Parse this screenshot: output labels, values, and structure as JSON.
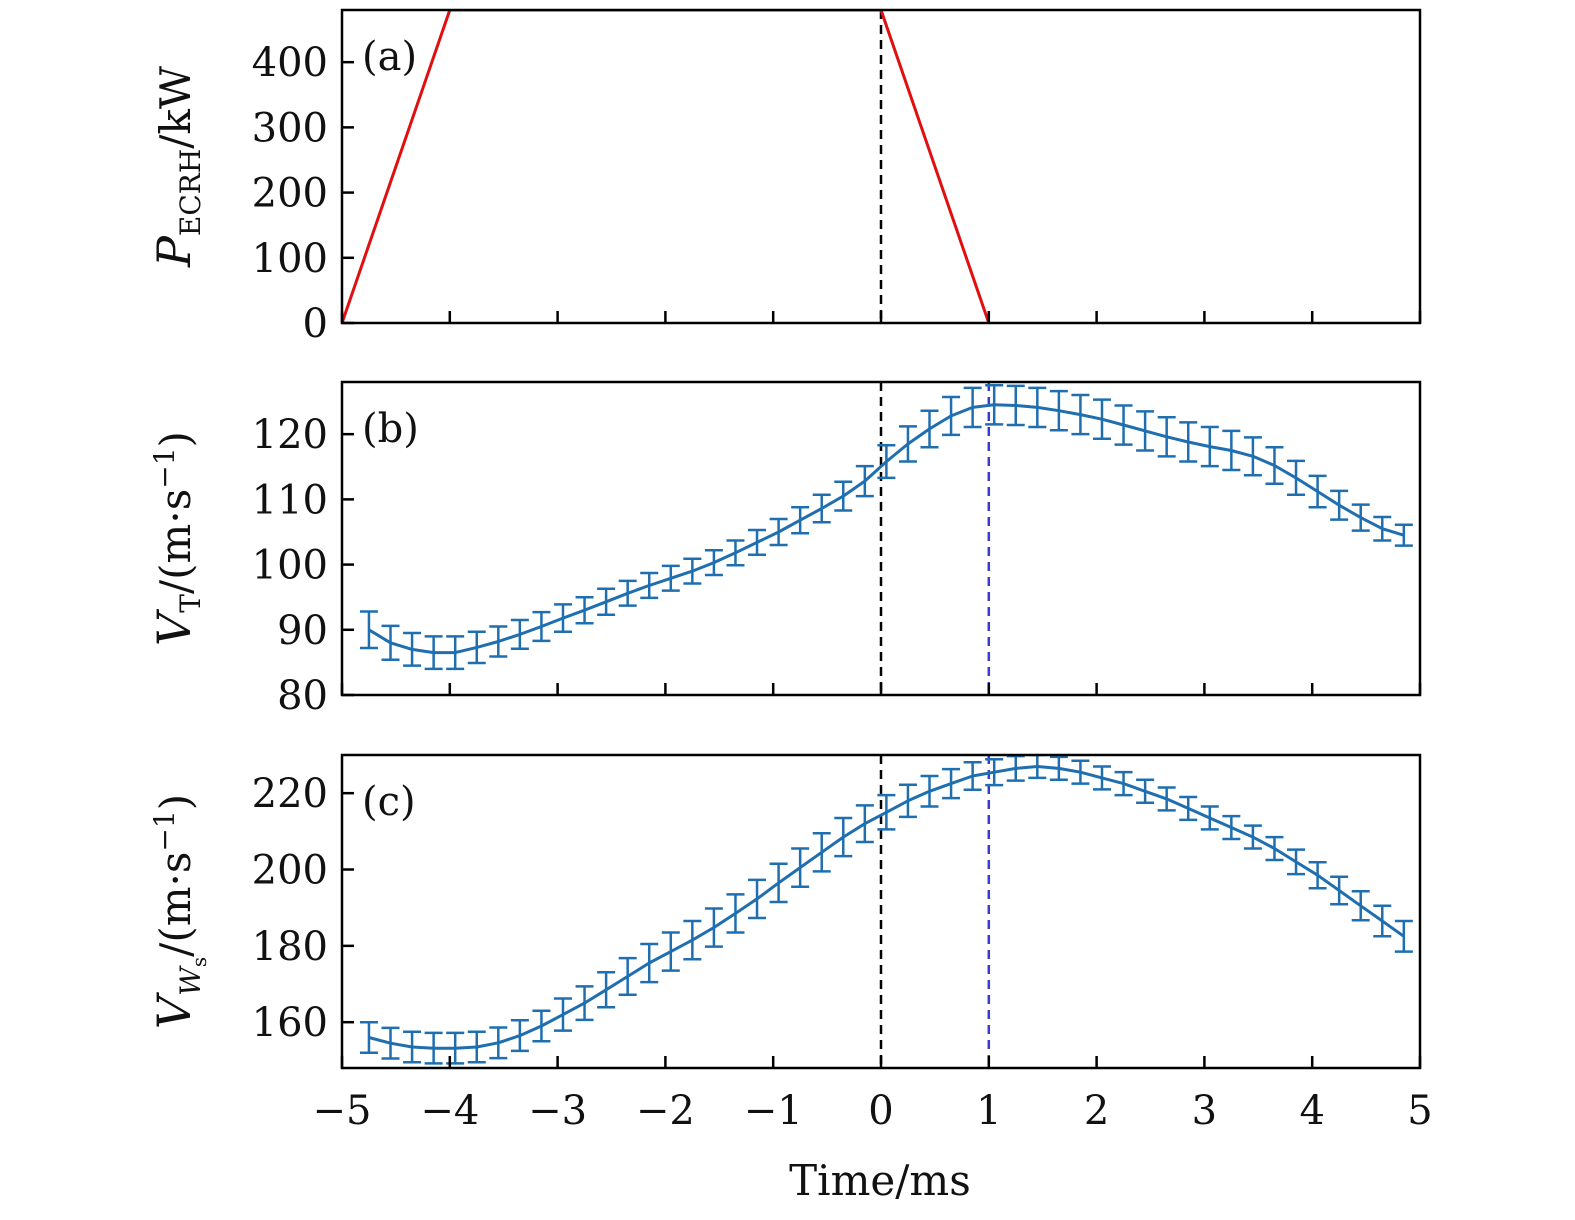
{
  "figure": {
    "xlabel": "Time/ms"
  },
  "chart_data": [
    {
      "type": "line",
      "panel_label": "(a)",
      "ylabel_main": "P",
      "ylabel_sub": "ECRH",
      "ylabel_unit": "/kW",
      "xlim": [
        -5,
        5
      ],
      "ylim": [
        0,
        480
      ],
      "yticks": [
        0,
        100,
        200,
        300,
        400
      ],
      "vlines": [
        {
          "x": 0,
          "color": "#000000"
        }
      ],
      "series": [
        {
          "color": "#e01010",
          "x": [
            -5,
            -4,
            0,
            1
          ],
          "y": [
            0,
            480,
            480,
            0
          ]
        }
      ]
    },
    {
      "type": "line",
      "panel_label": "(b)",
      "ylabel_main": "V",
      "ylabel_sub": "T",
      "ylabel_unit": "/(m·s",
      "ylabel_sup": "−1",
      "ylabel_close": ")",
      "xlim": [
        -5,
        5
      ],
      "ylim": [
        80,
        128
      ],
      "yticks": [
        80,
        90,
        100,
        110,
        120
      ],
      "vlines": [
        {
          "x": 0,
          "color": "#000000"
        },
        {
          "x": 1,
          "color": "#3a3ad0"
        }
      ],
      "series": [
        {
          "color": "#1f6fb0",
          "x": [
            -4.75,
            -4.55,
            -4.35,
            -4.15,
            -3.95,
            -3.75,
            -3.55,
            -3.35,
            -3.15,
            -2.95,
            -2.75,
            -2.55,
            -2.35,
            -2.15,
            -1.95,
            -1.75,
            -1.55,
            -1.35,
            -1.15,
            -0.95,
            -0.75,
            -0.55,
            -0.35,
            -0.15,
            0.05,
            0.25,
            0.45,
            0.65,
            0.85,
            1.05,
            1.25,
            1.45,
            1.65,
            1.85,
            2.05,
            2.25,
            2.45,
            2.65,
            2.85,
            3.05,
            3.25,
            3.45,
            3.65,
            3.85,
            4.05,
            4.25,
            4.45,
            4.65,
            4.85
          ],
          "y": [
            90.0,
            88.0,
            87.0,
            86.5,
            86.5,
            87.3,
            88.2,
            89.3,
            90.5,
            91.8,
            93.0,
            94.3,
            95.6,
            96.8,
            97.9,
            99.0,
            100.3,
            101.8,
            103.4,
            105.0,
            106.8,
            108.6,
            110.5,
            112.8,
            115.8,
            118.5,
            120.8,
            122.8,
            124.1,
            124.5,
            124.4,
            124.1,
            123.6,
            123.0,
            122.3,
            121.4,
            120.5,
            119.6,
            118.8,
            118.1,
            117.5,
            116.6,
            115.2,
            113.3,
            111.2,
            109.1,
            107.2,
            105.5,
            104.5
          ],
          "err": [
            2.8,
            2.6,
            2.5,
            2.5,
            2.5,
            2.4,
            2.3,
            2.2,
            2.2,
            2.1,
            2.0,
            2.0,
            1.9,
            1.9,
            1.9,
            1.9,
            1.9,
            1.9,
            1.9,
            2.0,
            2.0,
            2.1,
            2.2,
            2.3,
            2.5,
            2.7,
            2.8,
            2.9,
            3.0,
            3.0,
            3.0,
            3.0,
            3.0,
            3.0,
            3.0,
            3.0,
            3.0,
            3.0,
            3.0,
            3.0,
            3.0,
            2.9,
            2.8,
            2.6,
            2.4,
            2.2,
            2.0,
            1.8,
            1.6
          ]
        }
      ]
    },
    {
      "type": "line",
      "panel_label": "(c)",
      "ylabel_main": "V",
      "ylabel_sub": "W",
      "ylabel_subsub": "s",
      "ylabel_unit": "/(m·s",
      "ylabel_sup": "−1",
      "ylabel_close": ")",
      "xlim": [
        -5,
        5
      ],
      "ylim": [
        148,
        230
      ],
      "yticks": [
        160,
        180,
        200,
        220
      ],
      "vlines": [
        {
          "x": 0,
          "color": "#000000"
        },
        {
          "x": 1,
          "color": "#3a3ad0"
        }
      ],
      "series": [
        {
          "color": "#1f6fb0",
          "x": [
            -4.75,
            -4.55,
            -4.35,
            -4.15,
            -3.95,
            -3.75,
            -3.55,
            -3.35,
            -3.15,
            -2.95,
            -2.75,
            -2.55,
            -2.35,
            -2.15,
            -1.95,
            -1.75,
            -1.55,
            -1.35,
            -1.15,
            -0.95,
            -0.75,
            -0.55,
            -0.35,
            -0.15,
            0.05,
            0.25,
            0.45,
            0.65,
            0.85,
            1.05,
            1.25,
            1.45,
            1.65,
            1.85,
            2.05,
            2.25,
            2.45,
            2.65,
            2.85,
            3.05,
            3.25,
            3.45,
            3.65,
            3.85,
            4.05,
            4.25,
            4.45,
            4.65,
            4.85
          ],
          "y": [
            156.0,
            154.5,
            153.5,
            153.2,
            153.2,
            153.5,
            154.6,
            156.5,
            159.0,
            162.0,
            165.0,
            168.5,
            172.0,
            175.5,
            178.5,
            181.5,
            184.8,
            188.5,
            192.3,
            196.5,
            200.5,
            204.5,
            208.5,
            212.0,
            215.0,
            218.0,
            220.5,
            222.5,
            224.5,
            225.5,
            226.5,
            227.0,
            226.5,
            225.5,
            224.0,
            222.5,
            220.5,
            218.5,
            216.0,
            213.5,
            211.0,
            208.5,
            205.5,
            202.0,
            198.5,
            194.5,
            190.5,
            186.5,
            182.5
          ],
          "err": [
            4.0,
            4.0,
            4.0,
            4.0,
            4.0,
            4.0,
            4.0,
            4.0,
            4.0,
            4.2,
            4.4,
            4.6,
            4.8,
            5.0,
            5.0,
            5.0,
            5.0,
            5.0,
            5.0,
            5.0,
            5.0,
            5.0,
            5.0,
            4.8,
            4.5,
            4.2,
            4.0,
            3.8,
            3.6,
            3.4,
            3.2,
            3.0,
            3.0,
            3.0,
            3.0,
            3.0,
            3.0,
            3.0,
            3.0,
            3.0,
            3.0,
            3.0,
            3.0,
            3.2,
            3.4,
            3.6,
            3.8,
            4.0,
            4.0
          ]
        }
      ]
    }
  ]
}
